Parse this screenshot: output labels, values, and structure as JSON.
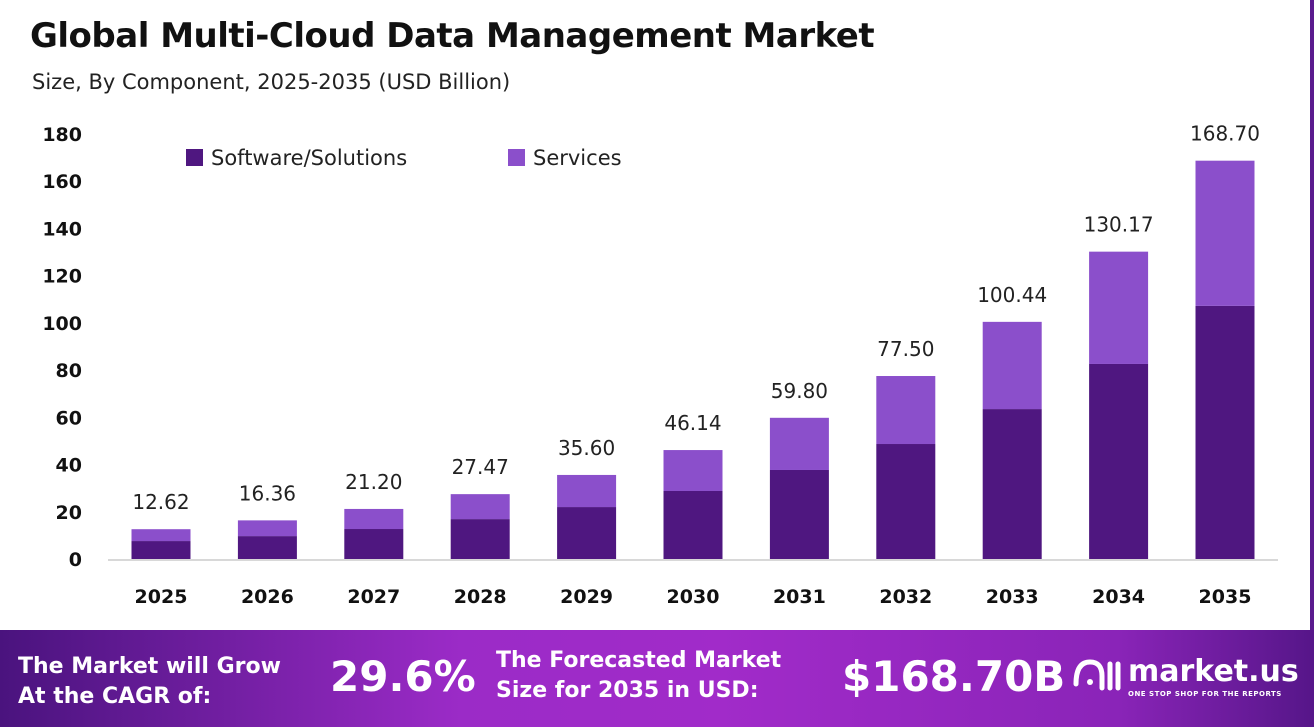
{
  "title": "Global Multi-Cloud Data Management Market",
  "subtitle": "Size, By Component, 2025-2035 (USD Billion)",
  "chart_data": {
    "type": "bar",
    "stacked": true,
    "categories": [
      "2025",
      "2026",
      "2027",
      "2028",
      "2029",
      "2030",
      "2031",
      "2032",
      "2033",
      "2034",
      "2035"
    ],
    "series": [
      {
        "name": "Software/Solutions",
        "color": "#4f1780",
        "values": [
          7.6,
          9.7,
          12.7,
          16.9,
          22.0,
          28.8,
          37.7,
          48.7,
          63.5,
          82.6,
          107.2
        ]
      },
      {
        "name": "Services",
        "color": "#8b4fcb",
        "values": [
          5.02,
          6.66,
          8.5,
          10.57,
          13.6,
          17.34,
          22.1,
          28.8,
          36.94,
          47.57,
          61.5
        ]
      }
    ],
    "totals": [
      "12.62",
      "16.36",
      "21.20",
      "27.47",
      "35.60",
      "46.14",
      "59.80",
      "77.50",
      "100.44",
      "130.17",
      "168.70"
    ],
    "yticks": [
      "0",
      "20",
      "40",
      "60",
      "80",
      "100",
      "120",
      "140",
      "160",
      "180"
    ],
    "ylim": [
      0,
      180
    ],
    "grid": false,
    "legend_position": "top-left"
  },
  "footer": {
    "cagr_label_line1": "The Market will Grow",
    "cagr_label_line2": "At the CAGR of:",
    "cagr_value": "29.6%",
    "forecast_label_line1": "The Forecasted Market",
    "forecast_label_line2": "Size for 2035 in USD:",
    "forecast_value": "$168.70B",
    "logo_text": "market.us",
    "logo_tagline": "ONE STOP SHOP FOR THE REPORTS"
  }
}
